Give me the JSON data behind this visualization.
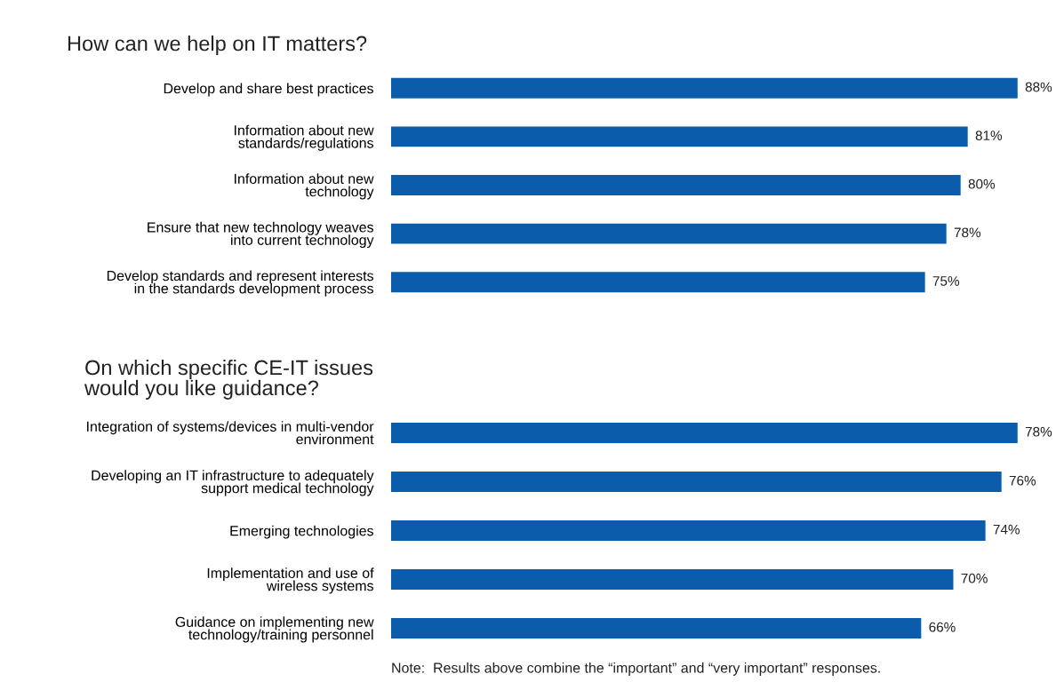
{
  "chart_data": [
    {
      "type": "bar",
      "orientation": "horizontal",
      "title": "How can we help on IT matters?",
      "categories": [
        "Develop and share best practices",
        "Information about new\nstandards/regulations",
        "Information about new\ntechnology",
        "Ensure that new technology weaves\ninto current technology",
        "Develop standards and represent interests\nin the standards development process"
      ],
      "values": [
        88,
        81,
        80,
        78,
        75
      ],
      "value_labels": [
        "88%",
        "81%",
        "80%",
        "78%",
        "75%"
      ],
      "color": "#0b5dab",
      "tick_labels": "y",
      "grid": false,
      "legend": false
    },
    {
      "type": "bar",
      "orientation": "horizontal",
      "title": "On which specific CE-IT issues\nwould you like guidance?",
      "categories": [
        "Integration of systems/devices in multi-vendor\nenvironment",
        "Developing an IT infrastructure to adequately\nsupport medical technology",
        "Emerging technologies",
        "Implementation and use of\nwireless systems",
        "Guidance on implementing new\ntechnology/training personnel"
      ],
      "values": [
        78,
        76,
        74,
        70,
        66
      ],
      "value_labels": [
        "78%",
        "76%",
        "74%",
        "70%",
        "66%"
      ],
      "color": "#0b5dab",
      "tick_labels": "y",
      "grid": false,
      "legend": false,
      "annotations": [
        "Note:  Results above combine the “important” and “very important” responses."
      ]
    }
  ]
}
